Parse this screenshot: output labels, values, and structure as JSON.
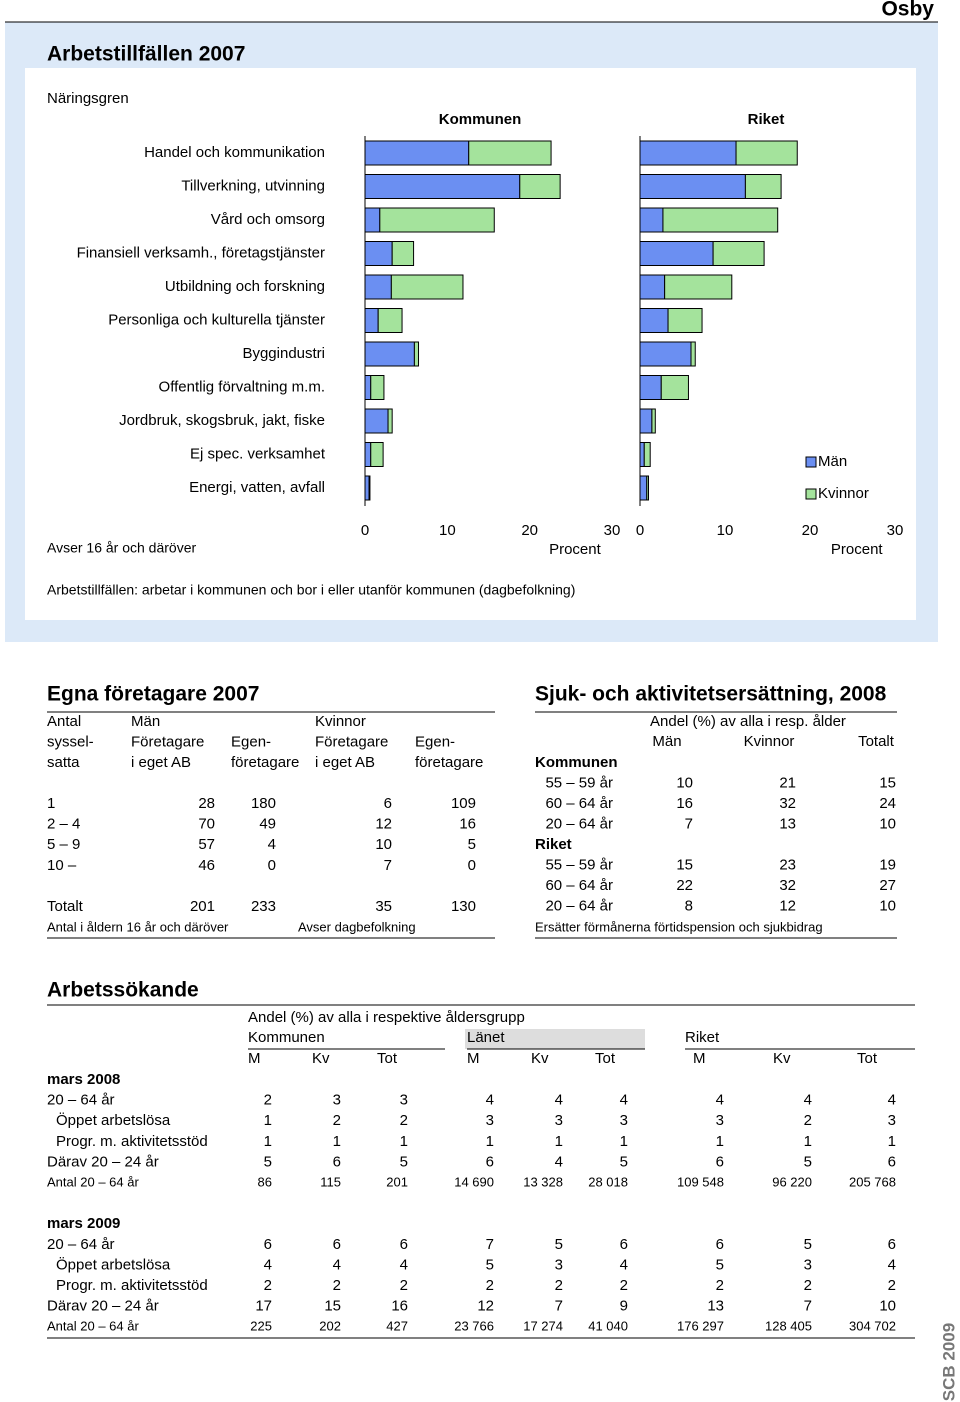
{
  "header": {
    "place": "Osby"
  },
  "chart_data": {
    "type": "bar",
    "orientation": "horizontal",
    "stacked": true,
    "title": "Arbetstillfällen 2007",
    "category_label": "Näringsgren",
    "categories": [
      "Handel och kommunikation",
      "Tillverkning, utvinning",
      "Vård och omsorg",
      "Finansiell verksamh., företagstjänster",
      "Utbildning och forskning",
      "Personliga och kulturella tjänster",
      "Byggindustri",
      "Offentlig förvaltning m.m.",
      "Jordbruk, skogsbruk, jakt, fiske",
      "Ej spec. verksamhet",
      "Energi, vatten, avfall"
    ],
    "panels": [
      "Kommunen",
      "Riket"
    ],
    "series": [
      {
        "name": "Män",
        "color": "#6b8ff2",
        "values": [
          [
            12.6,
            18.8,
            1.8,
            3.3,
            3.2,
            1.6,
            6.0,
            0.7,
            2.8,
            0.7,
            0.5
          ],
          [
            11.3,
            12.4,
            2.7,
            8.6,
            2.9,
            3.3,
            6.0,
            2.5,
            1.4,
            0.5,
            0.8
          ]
        ]
      },
      {
        "name": "Kvinnor",
        "color": "#a4e39c",
        "values": [
          [
            10.0,
            4.9,
            13.9,
            2.6,
            8.7,
            2.9,
            0.5,
            1.6,
            0.5,
            1.5,
            0.1
          ],
          [
            7.2,
            4.2,
            13.5,
            6.0,
            7.9,
            4.0,
            0.5,
            3.2,
            0.4,
            0.7,
            0.2
          ]
        ]
      }
    ],
    "xlim": [
      0,
      30
    ],
    "xticks": [
      0,
      10,
      20,
      30
    ],
    "xlabel": "Procent",
    "note": "Avser 16 år och däröver",
    "footnote": "Arbetstillfällen: arbetar i kommunen och bor i eller utanför kommunen (dagbefolkning)"
  },
  "egna_foretagare": {
    "title": "Egna företagare 2007",
    "header": [
      [
        "Antal",
        "Män",
        "Kvinnor"
      ],
      [
        "syssel-",
        "Företagare",
        "Egen-",
        "Företagare",
        "Egen-"
      ],
      [
        "satta",
        "i eget AB",
        "företagare",
        "i eget AB",
        "företagare"
      ]
    ],
    "rows": [
      [
        "1",
        28,
        180,
        6,
        109
      ],
      [
        "2 – 4",
        70,
        49,
        12,
        16
      ],
      [
        "5 – 9",
        57,
        4,
        10,
        5
      ],
      [
        "10 –",
        46,
        0,
        7,
        0
      ]
    ],
    "total": [
      "Totalt",
      201,
      233,
      35,
      130
    ],
    "notes": [
      "Antal i åldern 16 år och däröver",
      "Avser dagbefolkning"
    ]
  },
  "sjukersattning": {
    "title": "Sjuk- och aktivitetsersättning, 2008",
    "header": "Andel (%) av alla i resp. ålder",
    "columns": [
      "Män",
      "Kvinnor",
      "Totalt"
    ],
    "groups": [
      {
        "name": "Kommunen",
        "rows": [
          {
            "label": "55 – 59 år",
            "values": [
              10,
              21,
              15
            ]
          },
          {
            "label": "60 – 64 år",
            "values": [
              16,
              32,
              24
            ]
          },
          {
            "label": "20 – 64 år",
            "values": [
              7,
              13,
              10
            ]
          }
        ]
      },
      {
        "name": "Riket",
        "rows": [
          {
            "label": "55 – 59 år",
            "values": [
              15,
              23,
              19
            ]
          },
          {
            "label": "60 – 64 år",
            "values": [
              22,
              32,
              27
            ]
          },
          {
            "label": "20 – 64 år",
            "values": [
              8,
              12,
              10
            ]
          }
        ]
      }
    ],
    "note": "Ersätter förmånerna förtidspension och sjukbidrag"
  },
  "arbetssokande": {
    "title": "Arbetssökande",
    "subtitle": "Andel (%) av alla i respektive åldersgrupp",
    "groups": [
      "Kommunen",
      "Länet",
      "Riket"
    ],
    "columns": [
      "M",
      "Kv",
      "Tot"
    ],
    "periods": [
      {
        "name": "mars 2008",
        "rows": [
          {
            "label": "20 – 64 år",
            "values": [
              2,
              3,
              3,
              4,
              4,
              4,
              4,
              4,
              4
            ]
          },
          {
            "label": "Öppet arbetslösa",
            "values": [
              1,
              2,
              2,
              3,
              3,
              3,
              3,
              2,
              3
            ]
          },
          {
            "label": "Progr. m. aktivitetsstöd",
            "values": [
              1,
              1,
              1,
              1,
              1,
              1,
              1,
              1,
              1
            ]
          },
          {
            "label": "Därav 20 – 24 år",
            "values": [
              5,
              6,
              5,
              6,
              4,
              5,
              6,
              5,
              6
            ]
          },
          {
            "label": "Antal 20 – 64 år",
            "values": [
              86,
              115,
              201,
              "14 690",
              "13 328",
              "28 018",
              "109 548",
              "96 220",
              "205 768"
            ]
          }
        ]
      },
      {
        "name": "mars 2009",
        "rows": [
          {
            "label": "20 – 64 år",
            "values": [
              6,
              6,
              6,
              7,
              5,
              6,
              6,
              5,
              6
            ]
          },
          {
            "label": "Öppet arbetslösa",
            "values": [
              4,
              4,
              4,
              5,
              3,
              4,
              5,
              3,
              4
            ]
          },
          {
            "label": "Progr. m. aktivitetsstöd",
            "values": [
              2,
              2,
              2,
              2,
              2,
              2,
              2,
              2,
              2
            ]
          },
          {
            "label": "Därav 20 – 24 år",
            "values": [
              17,
              15,
              16,
              12,
              7,
              9,
              13,
              7,
              10
            ]
          },
          {
            "label": "Antal 20 – 64 år",
            "values": [
              225,
              202,
              427,
              "23 766",
              "17 274",
              "41 040",
              "176 297",
              "128 405",
              "304 702"
            ]
          }
        ]
      }
    ]
  },
  "footer": {
    "logo": "SCB 2009"
  }
}
